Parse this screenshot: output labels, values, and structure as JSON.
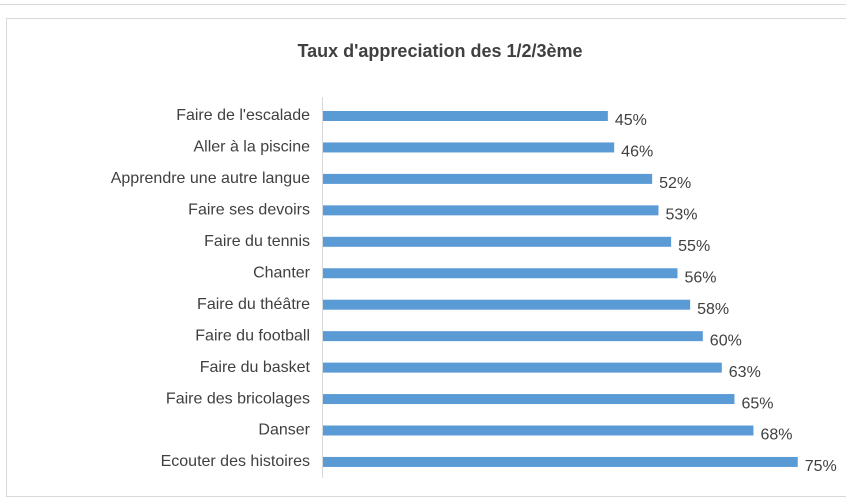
{
  "chart_data": {
    "type": "bar",
    "orientation": "horizontal",
    "title": "Taux d'appreciation des 1/2/3ème",
    "categories": [
      "Faire de l'escalade",
      "Aller à la piscine",
      "Apprendre une autre langue",
      "Faire ses devoirs",
      "Faire du tennis",
      "Chanter",
      "Faire du théâtre",
      "Faire du football",
      "Faire du basket",
      "Faire des bricolages",
      "Danser",
      "Ecouter des histoires"
    ],
    "values": [
      45,
      46,
      52,
      53,
      55,
      56,
      58,
      60,
      63,
      65,
      68,
      75
    ],
    "value_labels": [
      "45%",
      "46%",
      "52%",
      "53%",
      "55%",
      "56%",
      "58%",
      "60%",
      "63%",
      "65%",
      "68%",
      "75%"
    ],
    "color": "#5b9bd5"
  }
}
